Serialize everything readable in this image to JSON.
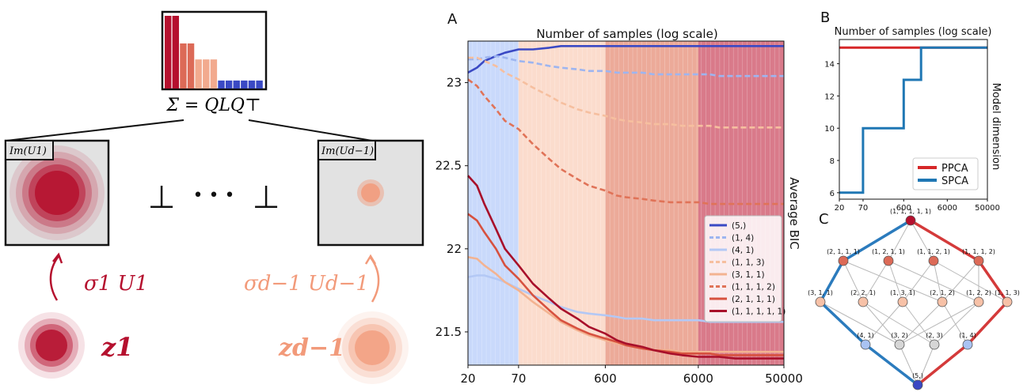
{
  "schematic": {
    "sigma_equation": "Σ = QLQ⊤",
    "panel_left_label": "Im(U1)",
    "panel_right_label": "Im(Ud−1)",
    "perp_symbol": "⊥",
    "dots": "• • •",
    "left_arrow_label": "σ1 U1",
    "right_arrow_label": "σd−1 Ud−1",
    "z_left": "z1",
    "z_right": "zd−1",
    "eigen_bars": [
      {
        "v": 1.0,
        "color": "#b5102e"
      },
      {
        "v": 1.0,
        "color": "#b5102e"
      },
      {
        "v": 0.62,
        "color": "#dc6a57"
      },
      {
        "v": 0.62,
        "color": "#dc6a57"
      },
      {
        "v": 0.4,
        "color": "#f2aa8e"
      },
      {
        "v": 0.4,
        "color": "#f2aa8e"
      },
      {
        "v": 0.4,
        "color": "#f2aa8e"
      },
      {
        "v": 0.11,
        "color": "#3a49c4"
      },
      {
        "v": 0.11,
        "color": "#3a49c4"
      },
      {
        "v": 0.11,
        "color": "#3a49c4"
      },
      {
        "v": 0.11,
        "color": "#3a49c4"
      },
      {
        "v": 0.11,
        "color": "#3a49c4"
      },
      {
        "v": 0.11,
        "color": "#3a49c4"
      }
    ]
  },
  "panel_labels": {
    "a": "A",
    "b": "B",
    "c": "C"
  },
  "chart_data": [
    {
      "id": "A",
      "type": "line",
      "title": "Number of samples (log scale)",
      "xlabel": "",
      "ylabel": "Average BIC",
      "x_scale": "log",
      "xlim": [
        20,
        50000
      ],
      "ylim": [
        21.3,
        23.25
      ],
      "x_ticks": [
        20,
        70,
        600,
        6000,
        50000
      ],
      "x_tick_labels": [
        "20",
        "70",
        "600",
        "6000",
        "50000"
      ],
      "y_ticks": [
        21.5,
        22,
        22.5,
        23
      ],
      "y_tick_labels": [
        "21.5",
        "22",
        "22.5",
        "23"
      ],
      "bands": [
        {
          "from": 20,
          "to": 70,
          "color": "#c9d9fb"
        },
        {
          "from": 70,
          "to": 600,
          "color": "#fbdccd"
        },
        {
          "from": 600,
          "to": 6000,
          "color": "#ecaa99"
        },
        {
          "from": 6000,
          "to": 50000,
          "color": "#d97a8a"
        }
      ],
      "legend_position": "lower right",
      "x": [
        20,
        25,
        30,
        40,
        50,
        70,
        100,
        150,
        200,
        300,
        400,
        600,
        800,
        1000,
        1500,
        2000,
        3000,
        4000,
        6000,
        8000,
        10000,
        15000,
        20000,
        30000,
        50000
      ],
      "series": [
        {
          "name": "(5,)",
          "color": "#3a49c4",
          "dash": "solid",
          "values": [
            23.06,
            23.09,
            23.13,
            23.16,
            23.18,
            23.2,
            23.2,
            23.21,
            23.22,
            23.22,
            23.22,
            23.22,
            23.22,
            23.22,
            23.22,
            23.22,
            23.22,
            23.22,
            23.22,
            23.22,
            23.22,
            23.22,
            23.22,
            23.22,
            23.22
          ]
        },
        {
          "name": "(1, 4)",
          "color": "#9db5f0",
          "dash": "dashed",
          "values": [
            23.14,
            23.14,
            23.15,
            23.16,
            23.15,
            23.13,
            23.12,
            23.1,
            23.09,
            23.08,
            23.07,
            23.07,
            23.06,
            23.06,
            23.06,
            23.05,
            23.05,
            23.05,
            23.05,
            23.05,
            23.04,
            23.04,
            23.04,
            23.04,
            23.04
          ]
        },
        {
          "name": "(4, 1)",
          "color": "#b3c8f5",
          "dash": "solid",
          "values": [
            21.83,
            21.84,
            21.84,
            21.82,
            21.8,
            21.76,
            21.72,
            21.68,
            21.65,
            21.62,
            21.61,
            21.6,
            21.59,
            21.58,
            21.58,
            21.57,
            21.57,
            21.57,
            21.57,
            21.56,
            21.56,
            21.56,
            21.56,
            21.56,
            21.56
          ]
        },
        {
          "name": "(1, 1, 3)",
          "color": "#f6bf9f",
          "dash": "dashed",
          "values": [
            23.15,
            23.15,
            23.13,
            23.1,
            23.06,
            23.02,
            22.97,
            22.92,
            22.88,
            22.84,
            22.82,
            22.8,
            22.78,
            22.77,
            22.76,
            22.75,
            22.75,
            22.74,
            22.74,
            22.74,
            22.73,
            22.73,
            22.73,
            22.73,
            22.73
          ]
        },
        {
          "name": "(3, 1, 1)",
          "color": "#f3b391",
          "dash": "solid",
          "values": [
            21.95,
            21.94,
            21.9,
            21.85,
            21.8,
            21.75,
            21.68,
            21.61,
            21.56,
            21.51,
            21.48,
            21.45,
            21.43,
            21.42,
            21.4,
            21.39,
            21.39,
            21.38,
            21.38,
            21.38,
            21.38,
            21.38,
            21.38,
            21.38,
            21.38
          ]
        },
        {
          "name": "(1, 1, 1, 2)",
          "color": "#e07358",
          "dash": "dashed",
          "values": [
            23.02,
            22.98,
            22.92,
            22.84,
            22.77,
            22.72,
            22.63,
            22.54,
            22.48,
            22.42,
            22.38,
            22.35,
            22.32,
            22.31,
            22.3,
            22.29,
            22.28,
            22.28,
            22.28,
            22.27,
            22.27,
            22.27,
            22.27,
            22.27,
            22.27
          ]
        },
        {
          "name": "(2, 1, 1, 1)",
          "color": "#d7513f",
          "dash": "solid",
          "values": [
            22.21,
            22.17,
            22.1,
            22.0,
            21.9,
            21.82,
            21.72,
            21.63,
            21.57,
            21.52,
            21.49,
            21.46,
            21.44,
            21.42,
            21.4,
            21.39,
            21.38,
            21.37,
            21.37,
            21.37,
            21.36,
            21.36,
            21.36,
            21.36,
            21.36
          ]
        },
        {
          "name": "(1, 1, 1, 1, 1)",
          "color": "#a80f2a",
          "dash": "solid",
          "values": [
            22.44,
            22.38,
            22.27,
            22.12,
            22.0,
            21.9,
            21.79,
            21.7,
            21.64,
            21.58,
            21.53,
            21.49,
            21.45,
            21.43,
            21.41,
            21.39,
            21.37,
            21.36,
            21.35,
            21.35,
            21.35,
            21.34,
            21.34,
            21.34,
            21.34
          ]
        }
      ]
    },
    {
      "id": "B",
      "type": "line",
      "title": "Number of samples (log scale)",
      "xlabel": "",
      "ylabel": "Model dimension",
      "x_scale": "log",
      "xlim": [
        20,
        50000
      ],
      "ylim": [
        5.6,
        15.5
      ],
      "x_ticks": [
        20,
        70,
        600,
        6000,
        50000
      ],
      "x_tick_labels": [
        "20",
        "70",
        "600",
        "6000",
        "50000"
      ],
      "y_ticks": [
        6,
        8,
        10,
        12,
        14
      ],
      "y_tick_labels": [
        "6",
        "8",
        "10",
        "12",
        "14"
      ],
      "legend_position": "lower right",
      "series": [
        {
          "name": "PPCA",
          "color": "#d62728",
          "x": [
            20,
            50000
          ],
          "values": [
            15,
            15
          ],
          "step": true
        },
        {
          "name": "SPCA",
          "color": "#1f77b4",
          "x": [
            20,
            70,
            600,
            1500,
            50000
          ],
          "values": [
            6,
            10,
            13,
            15,
            15
          ],
          "step": true
        }
      ]
    }
  ],
  "lattice": {
    "nodes": [
      {
        "label": "(1, 1, 1, 1, 1)",
        "color": "#b5102e"
      },
      {
        "label": "(2, 1, 1, 1)",
        "color": "#dc6a57"
      },
      {
        "label": "(1, 2, 1, 1)",
        "color": "#dc6a57"
      },
      {
        "label": "(1, 1, 2, 1)",
        "color": "#dc6a57"
      },
      {
        "label": "(1, 1, 1, 2)",
        "color": "#dc6a57"
      },
      {
        "label": "(3, 1, 1)",
        "color": "#f7c1a7"
      },
      {
        "label": "(2, 2, 1)",
        "color": "#f7c1a7"
      },
      {
        "label": "(1, 3, 1)",
        "color": "#f7c1a7"
      },
      {
        "label": "(2, 1, 2)",
        "color": "#f7c1a7"
      },
      {
        "label": "(1, 2, 2)",
        "color": "#f7c1a7"
      },
      {
        "label": "(1, 1, 3)",
        "color": "#f7c1a7"
      },
      {
        "label": "(4, 1)",
        "color": "#a9c3f3"
      },
      {
        "label": "(3, 2)",
        "color": "#d6d6d6"
      },
      {
        "label": "(2, 3)",
        "color": "#d6d6d6"
      },
      {
        "label": "(1, 4)",
        "color": "#a9c3f3"
      },
      {
        "label": "(5,)",
        "color": "#3a49c4"
      }
    ]
  }
}
